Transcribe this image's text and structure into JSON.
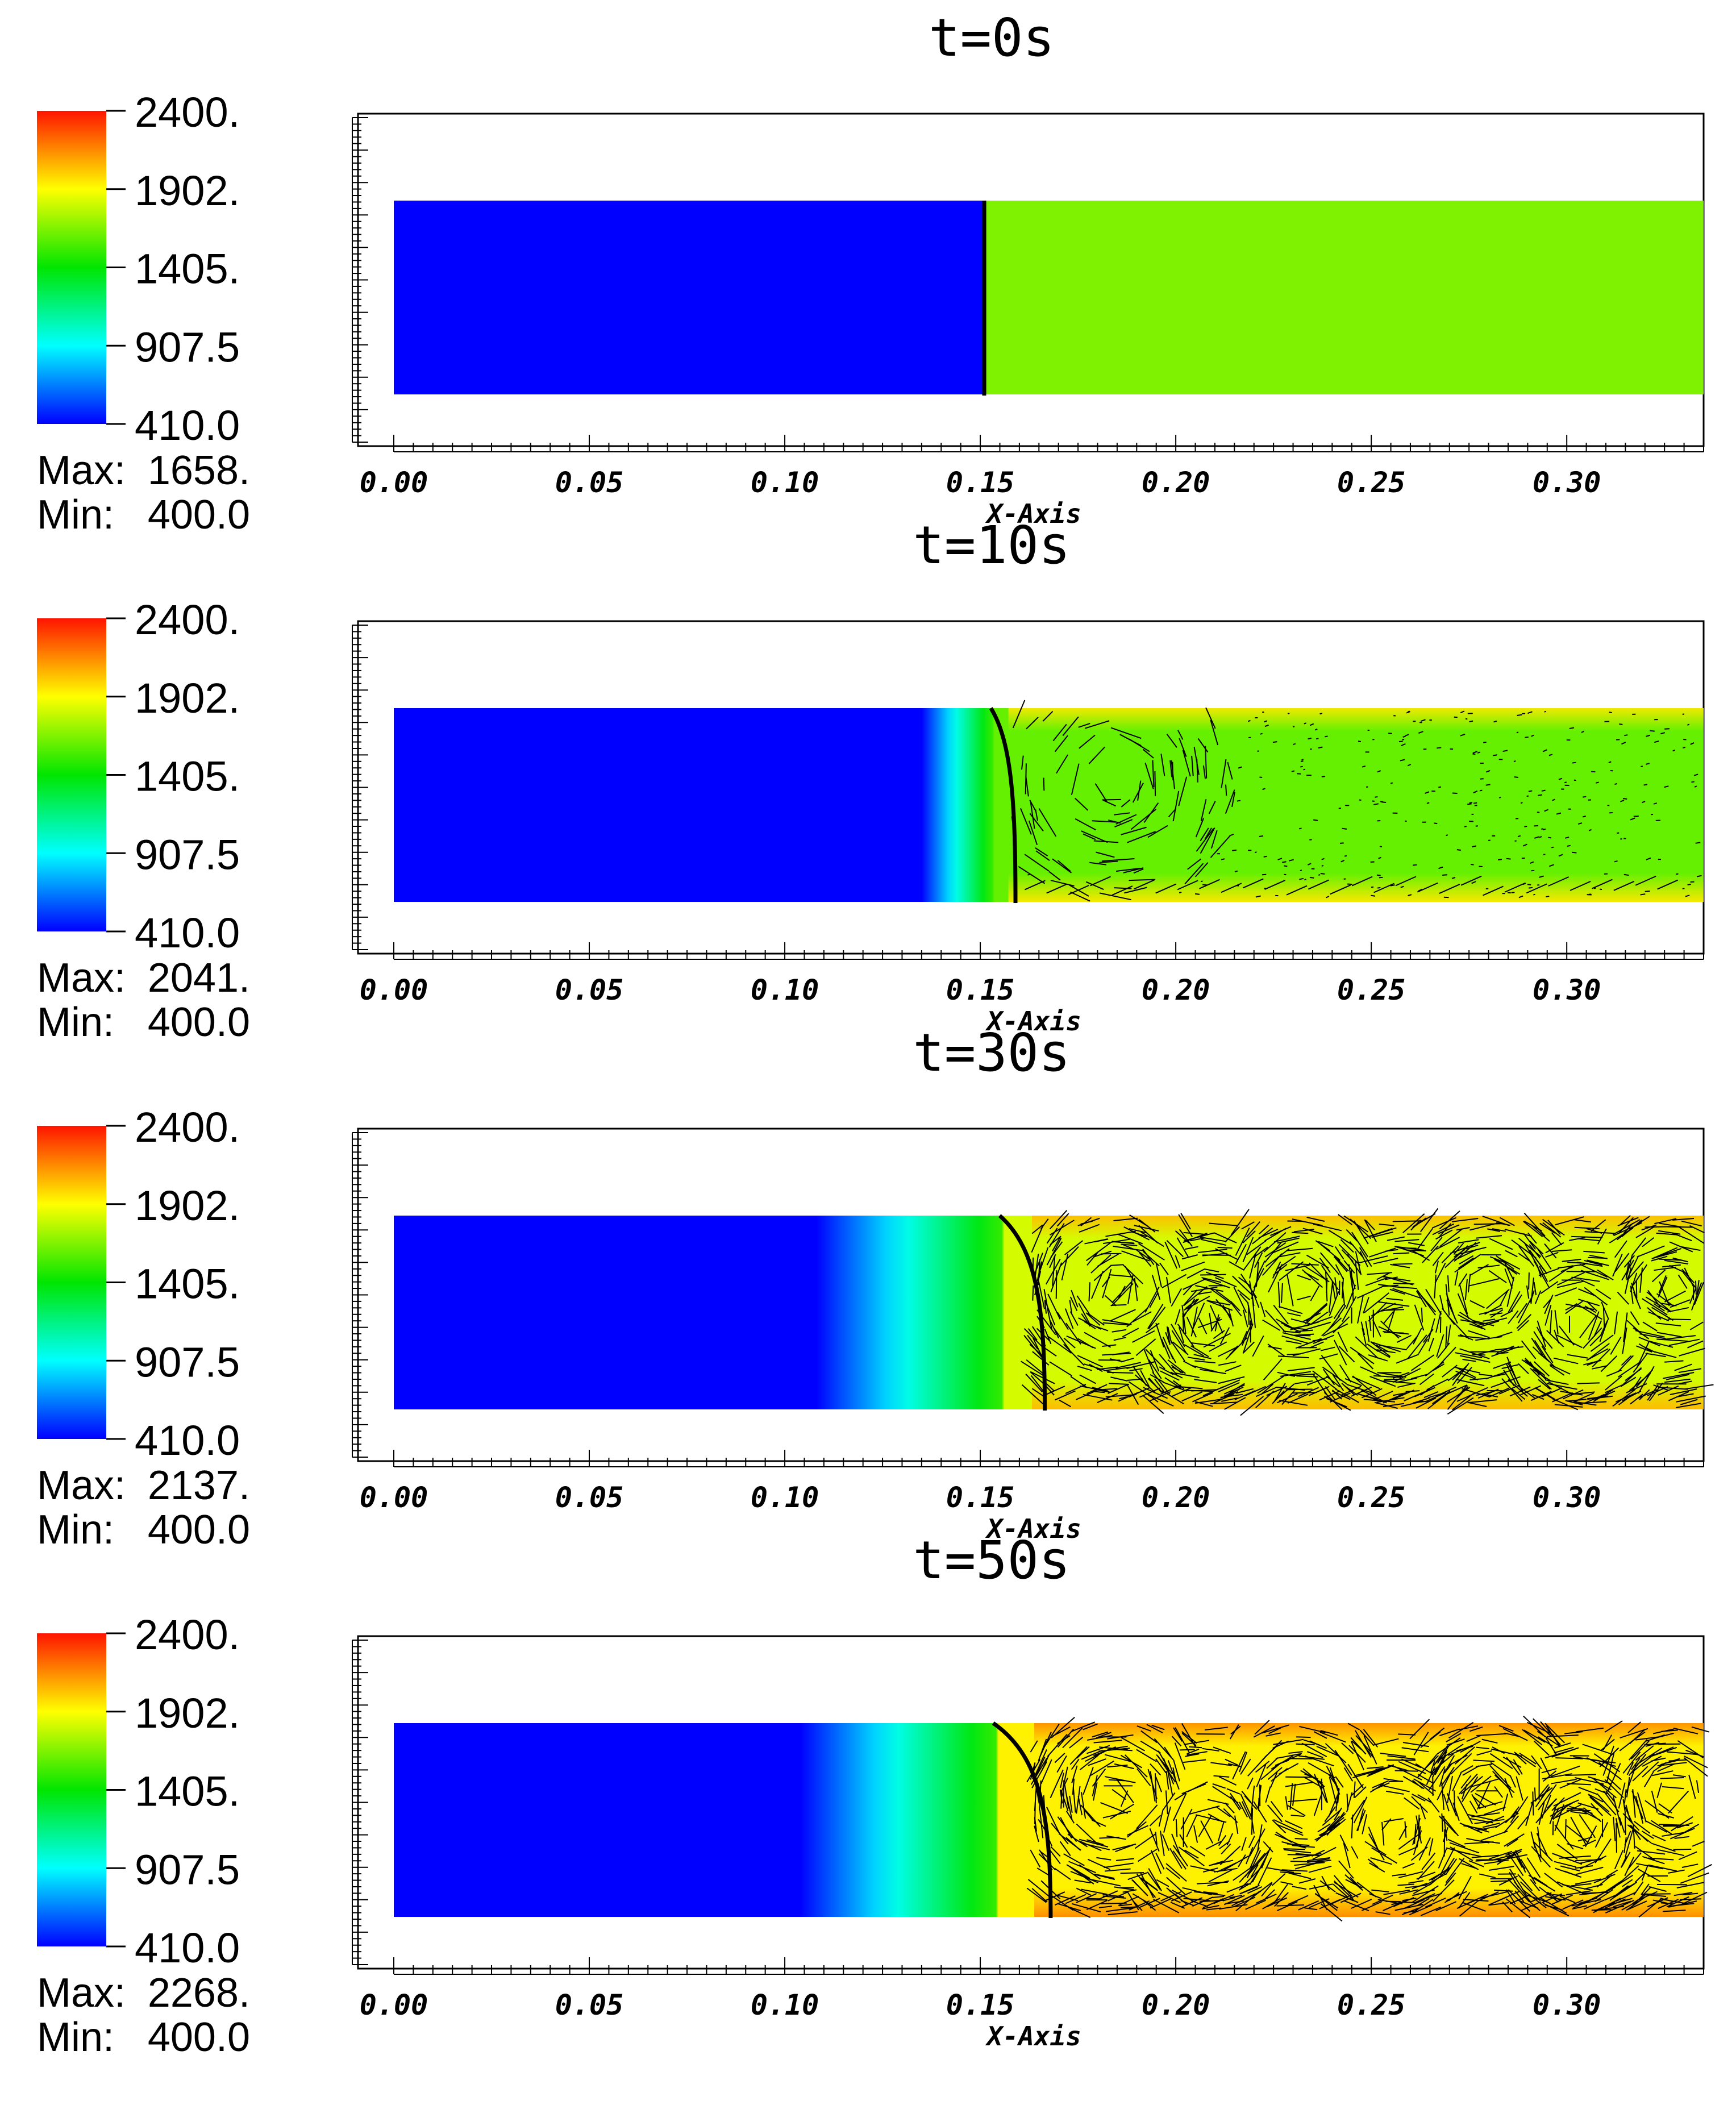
{
  "chart_data": [
    {
      "type": "heatmap",
      "title": "t=0s",
      "xlabel": "X-Axis",
      "xlim": [
        0.0,
        0.335
      ],
      "x_ticks": [
        "0.00",
        "0.05",
        "0.10",
        "0.15",
        "0.20",
        "0.25",
        "0.30"
      ],
      "colorbar": {
        "ticks": [
          "2400.",
          "1902.",
          "1405.",
          "907.5",
          "410.0"
        ],
        "range": [
          410.0,
          2400.0
        ],
        "max_label": "Max:",
        "max_value": "1658.",
        "min_label": "Min:",
        "min_value": "400.0"
      },
      "field": {
        "x_start": 0.0,
        "x_end": 0.335,
        "front_x": 0.151,
        "cold_value": 410.0,
        "cold_until_x": 0.151,
        "hot_value": 1650.0,
        "hot_edge_value": 1650.0,
        "front_curve": 0.0,
        "flow_vectors": "none"
      }
    },
    {
      "type": "heatmap",
      "title": "t=10s",
      "xlabel": "X-Axis",
      "xlim": [
        0.0,
        0.335
      ],
      "x_ticks": [
        "0.00",
        "0.05",
        "0.10",
        "0.15",
        "0.20",
        "0.25",
        "0.30"
      ],
      "colorbar": {
        "ticks": [
          "2400.",
          "1902.",
          "1405.",
          "907.5",
          "410.0"
        ],
        "range": [
          410.0,
          2400.0
        ],
        "max_label": "Max:",
        "max_value": "2041.",
        "min_label": "Min:",
        "min_value": "400.0"
      },
      "field": {
        "x_start": 0.0,
        "x_end": 0.335,
        "front_x": 0.156,
        "cold_value": 410.0,
        "cold_until_x": 0.135,
        "hot_value": 1600.0,
        "hot_edge_value": 1950.0,
        "front_curve": 0.006,
        "flow_vectors": "sparse"
      }
    },
    {
      "type": "heatmap",
      "title": "t=30s",
      "xlabel": "X-Axis",
      "xlim": [
        0.0,
        0.335
      ],
      "x_ticks": [
        "0.00",
        "0.05",
        "0.10",
        "0.15",
        "0.20",
        "0.25",
        "0.30"
      ],
      "colorbar": {
        "ticks": [
          "2400.",
          "1902.",
          "1405.",
          "907.5",
          "410.0"
        ],
        "range": [
          410.0,
          2400.0
        ],
        "max_label": "Max:",
        "max_value": "2137.",
        "min_label": "Min:",
        "min_value": "400.0"
      },
      "field": {
        "x_start": 0.0,
        "x_end": 0.335,
        "front_x": 0.161,
        "cold_value": 410.0,
        "cold_until_x": 0.108,
        "hot_value": 1820.0,
        "hot_edge_value": 2050.0,
        "front_curve": 0.011,
        "flow_vectors": "dense"
      }
    },
    {
      "type": "heatmap",
      "title": "t=50s",
      "xlabel": "X-Axis",
      "xlim": [
        0.0,
        0.335
      ],
      "x_ticks": [
        "0.00",
        "0.05",
        "0.10",
        "0.15",
        "0.20",
        "0.25",
        "0.30"
      ],
      "colorbar": {
        "ticks": [
          "2400.",
          "1902.",
          "1405.",
          "907.5",
          "410.0"
        ],
        "range": [
          410.0,
          2400.0
        ],
        "max_label": "Max:",
        "max_value": "2268.",
        "min_label": "Min:",
        "min_value": "400.0"
      },
      "field": {
        "x_start": 0.0,
        "x_end": 0.335,
        "front_x": 0.161,
        "cold_value": 410.0,
        "cold_until_x": 0.104,
        "hot_value": 1930.0,
        "hot_edge_value": 2150.0,
        "front_curve": 0.014,
        "flow_vectors": "dense"
      }
    }
  ]
}
